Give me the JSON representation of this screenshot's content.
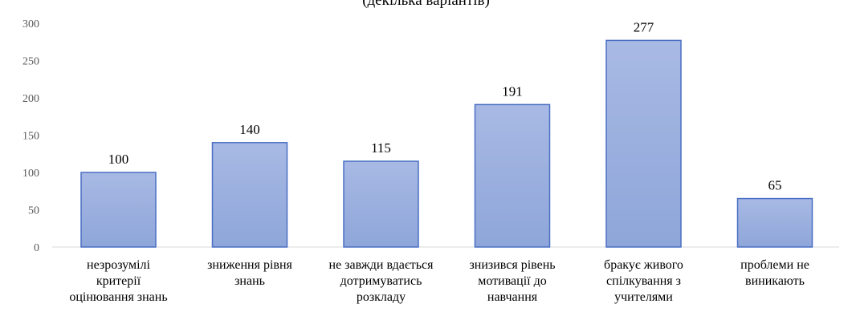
{
  "chart_data": {
    "type": "bar",
    "title": "(декілька варіантів)",
    "categories": [
      "незрозумілі критерії оцінювання знань",
      "зниження рівня знань",
      "не завжди вдається дотримуватись розкладу",
      "знизився рівень мотивації до навчання",
      "бракує живого спілкування з учителями",
      "проблеми не виникають"
    ],
    "category_lines": [
      [
        "незрозумілі",
        "критерії",
        "оцінювання знань"
      ],
      [
        "зниження рівня",
        "знань"
      ],
      [
        "не завжди вдається",
        "дотримуватись",
        "розкладу"
      ],
      [
        "знизився рівень",
        "мотивації до",
        "навчання"
      ],
      [
        "бракує живого",
        "спілкування з",
        "учителями"
      ],
      [
        "проблеми не",
        "виникають"
      ]
    ],
    "values": [
      100,
      140,
      115,
      191,
      277,
      65
    ],
    "data_labels": [
      "100",
      "140",
      "115",
      "191",
      "277",
      "65"
    ],
    "y_ticks": [
      "0",
      "50",
      "100",
      "150",
      "200",
      "250",
      "300"
    ],
    "ylim": [
      0,
      300
    ],
    "xlabel": "",
    "ylabel": "",
    "grid": false,
    "legend": "none",
    "colors": {
      "bar_top": "#a8b9e4",
      "bar_bottom": "#8ea6d9",
      "bar_stroke": "#4a6fc4",
      "axis": "#d9d9d9"
    }
  }
}
